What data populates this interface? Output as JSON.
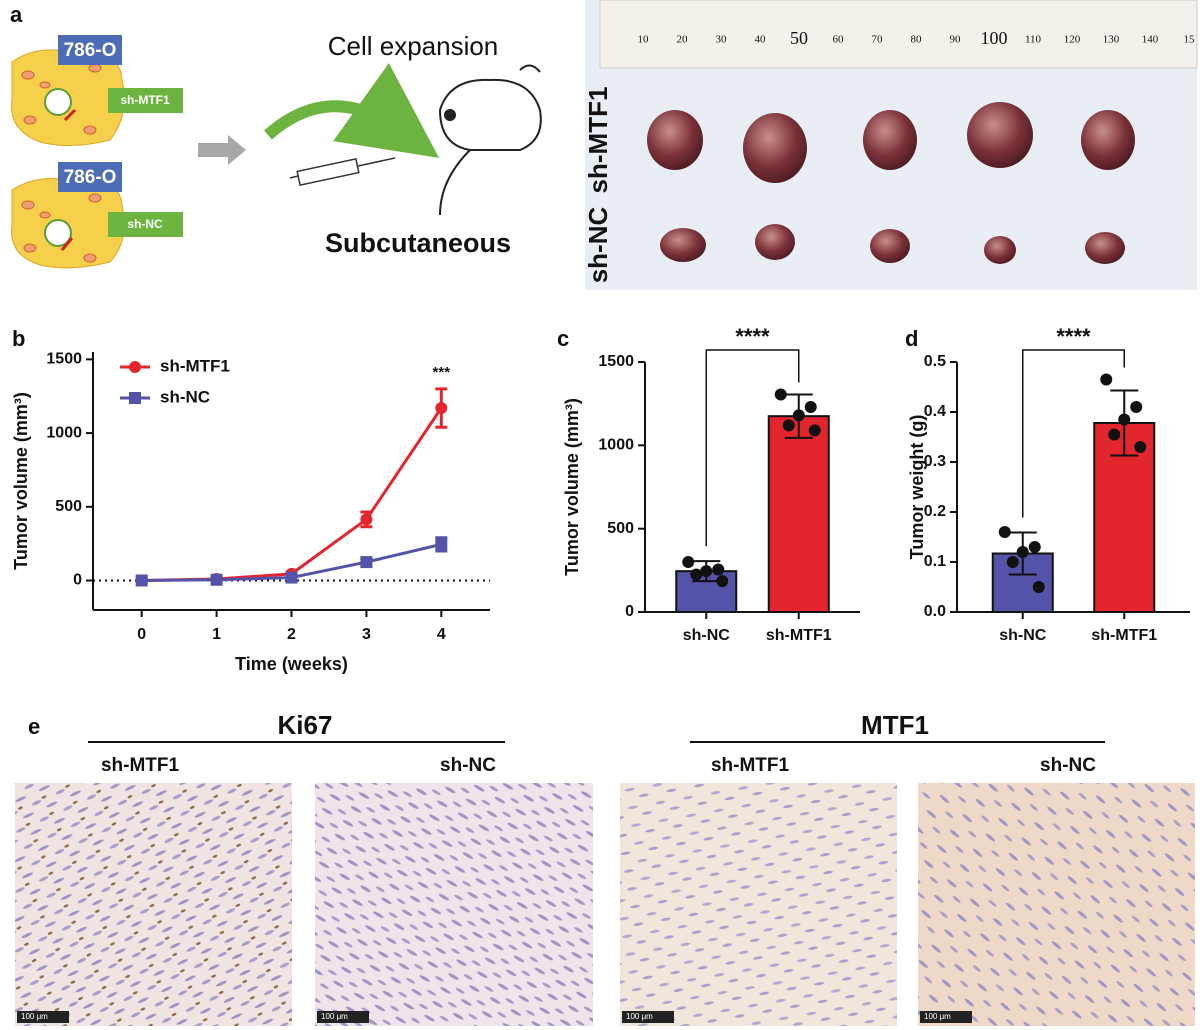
{
  "panel_a": {
    "label": "a",
    "cells": [
      {
        "line": "786-O",
        "construct": "sh-MTF1"
      },
      {
        "line": "786-O",
        "construct": "sh-NC"
      }
    ],
    "step": "Cell expansion",
    "route": "Subcutaneous",
    "photo_rows": [
      "sh-MTF1",
      "sh-NC"
    ],
    "ruler": [
      "10",
      "20",
      "30",
      "40",
      "50",
      "60",
      "70",
      "80",
      "90",
      "100",
      "110",
      "120",
      "130",
      "140",
      "15"
    ]
  },
  "chart_data": [
    {
      "type": "line",
      "panel_label": "b",
      "x_label": "Time (weeks)",
      "y_label": "Tumor volume (mm³)",
      "x": [
        0,
        1,
        2,
        3,
        4
      ],
      "series": [
        {
          "name": "sh-MTF1",
          "color": "#e3262d",
          "marker": "circle",
          "values": [
            0,
            10,
            45,
            415,
            1170
          ],
          "errors": [
            5,
            8,
            12,
            50,
            130
          ]
        },
        {
          "name": "sh-NC",
          "color": "#5553a8",
          "marker": "square",
          "values": [
            0,
            5,
            20,
            125,
            245
          ],
          "errors": [
            5,
            5,
            8,
            25,
            45
          ]
        }
      ],
      "annotation": "***",
      "xlim": [
        -0.65,
        4.65
      ],
      "ylim": [
        -200,
        1550
      ],
      "xticks": [
        0,
        1,
        2,
        3,
        4
      ],
      "yticks": [
        0,
        500,
        1000,
        1500
      ],
      "zero_line": true
    },
    {
      "type": "bar",
      "panel_label": "c",
      "y_label": "Tumor volume (mm³)",
      "categories": [
        "sh-NC",
        "sh-MTF1"
      ],
      "colors": [
        "#5553a8",
        "#e3262d"
      ],
      "values": [
        245,
        1175
      ],
      "errors": [
        60,
        130
      ],
      "points": [
        [
          300,
          255,
          245,
          225,
          185
        ],
        [
          1305,
          1230,
          1180,
          1120,
          1090
        ]
      ],
      "significance": "****",
      "ylim": [
        0,
        1500
      ],
      "yticks": [
        0,
        500,
        1000,
        1500
      ]
    },
    {
      "type": "bar",
      "panel_label": "d",
      "y_label": "Tumor weight (g)",
      "categories": [
        "sh-NC",
        "sh-MTF1"
      ],
      "colors": [
        "#5553a8",
        "#e3262d"
      ],
      "values": [
        0.117,
        0.378
      ],
      "errors": [
        0.042,
        0.065
      ],
      "points": [
        [
          0.16,
          0.13,
          0.12,
          0.1,
          0.05
        ],
        [
          0.465,
          0.41,
          0.385,
          0.355,
          0.33
        ]
      ],
      "significance": "****",
      "ylim": [
        0,
        0.5
      ],
      "yticks": [
        {
          "value": 0,
          "label": "0.0"
        },
        0.1,
        0.2,
        0.3,
        0.4,
        0.5
      ]
    }
  ],
  "panel_e": {
    "label": "e",
    "groups": [
      {
        "title": "Ki67",
        "conditions": [
          "sh-MTF1",
          "sh-NC"
        ]
      },
      {
        "title": "MTF1",
        "conditions": [
          "sh-MTF1",
          "sh-NC"
        ]
      }
    ],
    "scale_bar": "100 μm"
  }
}
